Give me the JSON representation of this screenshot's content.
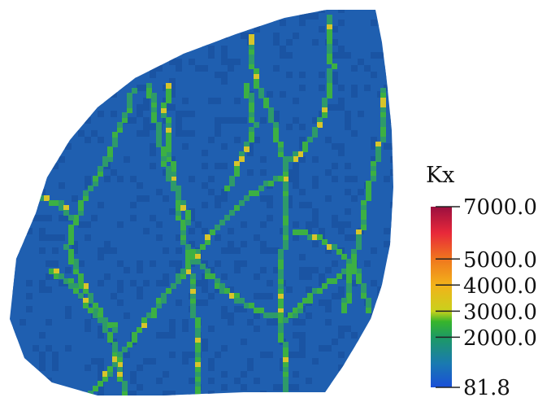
{
  "plot": {
    "variable": "Kx",
    "colors": {
      "matrix": "#1f5fb0",
      "matrix_alt": "#2a6cbd",
      "matrix_dark": "#1a54a3",
      "fracture_low": "#2e9a6a",
      "fracture_mid": "#3cb043",
      "fracture_high": "#d7c52a",
      "background": "#ffffff"
    }
  },
  "colorbar": {
    "title": "Kx",
    "min": 81.8,
    "max": 7000.0,
    "ticks": [
      "7000.0",
      "5000.0",
      "4000.0",
      "3000.0",
      "2000.0",
      "81.8"
    ],
    "tick_values": [
      7000.0,
      5000.0,
      4000.0,
      3000.0,
      2000.0,
      81.8
    ],
    "gradient_stops": [
      {
        "value": 81.8,
        "color": "#1a4fd8"
      },
      {
        "value": 1000.0,
        "color": "#1a7ab0"
      },
      {
        "value": 2000.0,
        "color": "#1d9a64"
      },
      {
        "value": 2600.0,
        "color": "#37b52c"
      },
      {
        "value": 3000.0,
        "color": "#c9d11c"
      },
      {
        "value": 4000.0,
        "color": "#f2b21a"
      },
      {
        "value": 5000.0,
        "color": "#f0761e"
      },
      {
        "value": 6000.0,
        "color": "#e8283a"
      },
      {
        "value": 7000.0,
        "color": "#9b0f3f"
      }
    ]
  }
}
